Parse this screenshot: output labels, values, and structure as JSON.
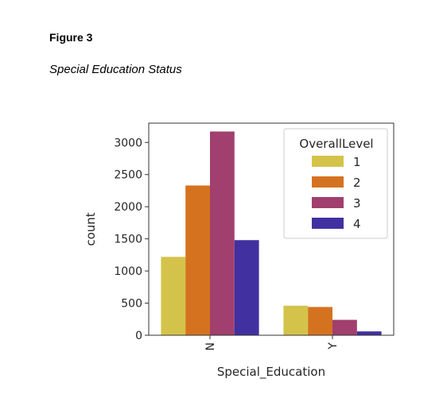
{
  "figure": {
    "label": "Figure 3",
    "caption": "Special Education Status"
  },
  "chart_data": {
    "type": "bar",
    "categories": [
      "N",
      "Y"
    ],
    "xlabel": "Special_Education",
    "ylabel": "count",
    "ylim": [
      0,
      3300
    ],
    "yticks": [
      0,
      500,
      1000,
      1500,
      2000,
      2500,
      3000
    ],
    "legend": {
      "title": "OverallLevel",
      "placement": "top-right"
    },
    "series": [
      {
        "name": "1",
        "color": "#d4c34a",
        "values": [
          1220,
          460
        ]
      },
      {
        "name": "2",
        "color": "#d5721f",
        "values": [
          2330,
          440
        ]
      },
      {
        "name": "3",
        "color": "#a13f6e",
        "values": [
          3170,
          240
        ]
      },
      {
        "name": "4",
        "color": "#4130a0",
        "values": [
          1480,
          60
        ]
      }
    ]
  }
}
